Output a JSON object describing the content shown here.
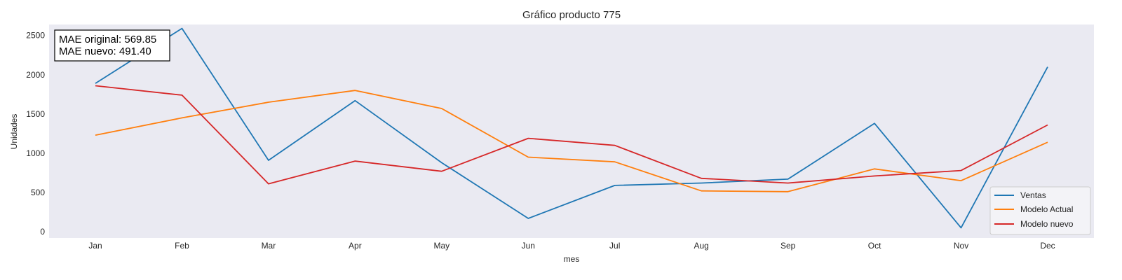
{
  "chart_data": {
    "type": "line",
    "title": "Gráfico producto 775",
    "xlabel": "mes",
    "ylabel": "Unidades",
    "categories": [
      "Jan",
      "Feb",
      "Mar",
      "Apr",
      "May",
      "Jun",
      "Jul",
      "Aug",
      "Sep",
      "Oct",
      "Nov",
      "Dec"
    ],
    "ylim": [
      -80,
      2640
    ],
    "yticks": [
      0,
      500,
      1000,
      1500,
      2000,
      2500
    ],
    "grid": false,
    "legend_position": "lower-right",
    "series": [
      {
        "name": "Ventas",
        "color": "#1f77b4",
        "values": [
          1890,
          2590,
          910,
          1670,
          880,
          170,
          590,
          620,
          670,
          1380,
          50,
          2100
        ]
      },
      {
        "name": "Modelo Actual",
        "color": "#ff7f0e",
        "values": [
          1230,
          1450,
          1650,
          1800,
          1570,
          950,
          890,
          520,
          510,
          800,
          650,
          1140
        ]
      },
      {
        "name": "Modelo nuevo",
        "color": "#d62728",
        "values": [
          1860,
          1740,
          610,
          900,
          770,
          1190,
          1100,
          680,
          620,
          710,
          780,
          1360
        ]
      }
    ],
    "annotations": [
      "MAE original: 569.85",
      "MAE nuevo: 491.40"
    ]
  }
}
